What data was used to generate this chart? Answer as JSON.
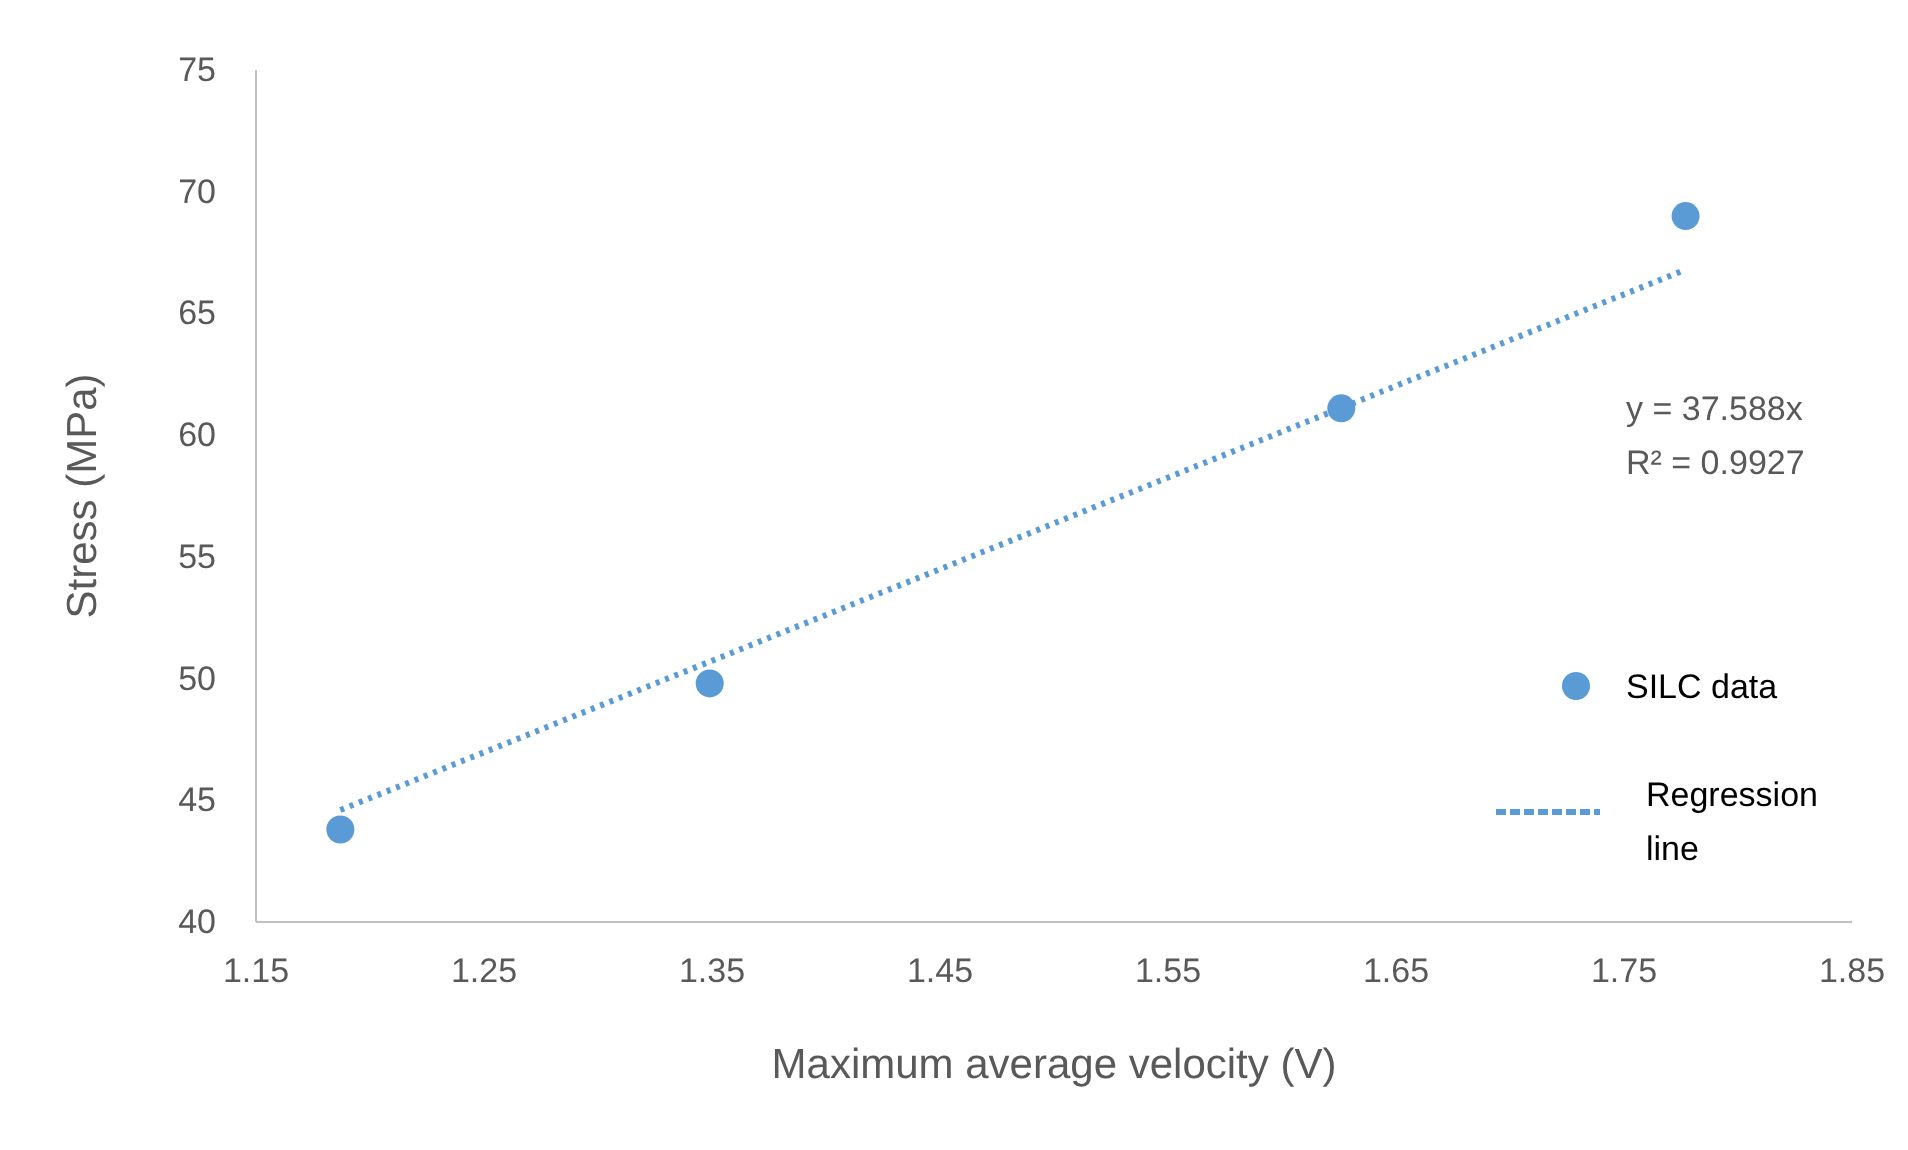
{
  "chart_data": {
    "type": "scatter",
    "xlabel": "Maximum average velocity (V)",
    "ylabel": "Stress (MPa)",
    "xlim": [
      1.15,
      1.85
    ],
    "xticks": [
      1.15,
      1.25,
      1.35,
      1.45,
      1.55,
      1.65,
      1.75,
      1.85
    ],
    "ylim": [
      40,
      75
    ],
    "yticks": [
      40,
      45,
      50,
      55,
      60,
      65,
      70,
      75
    ],
    "grid": false,
    "legend": "right",
    "marker": "circle",
    "series": [
      {
        "name": "SILC data",
        "type": "scatter",
        "color": "#5b9bd5",
        "x": [
          1.187,
          1.349,
          1.626,
          1.777
        ],
        "values": [
          43.8,
          49.8,
          61.1,
          69
        ]
      },
      {
        "name": "Regression line",
        "type": "line",
        "line_style": "dotted",
        "marker": "none",
        "color": "#5b9bd5",
        "x": [
          1.187,
          1.777
        ],
        "values": [
          44.6,
          66.8
        ]
      }
    ],
    "annotations": [
      "y = 37.588x",
      "R² = 0.9927"
    ]
  }
}
